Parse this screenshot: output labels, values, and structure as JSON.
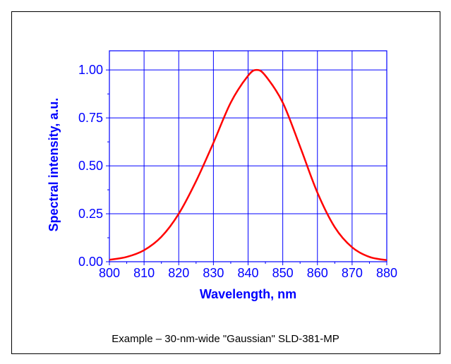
{
  "caption": "Example – 30-nm-wide \"Gaussian\" SLD-381-MP",
  "colors": {
    "axis": "#0000ff",
    "grid": "#0000ff",
    "curve": "#ff0000",
    "text": "#0000ff"
  },
  "chart_data": {
    "type": "line",
    "title": "",
    "xlabel": "Wavelength, nm",
    "ylabel": "Spectral intensity, a.u.",
    "xlim": [
      800,
      880
    ],
    "ylim": [
      0,
      1.1
    ],
    "xticks": [
      "800",
      "810",
      "820",
      "830",
      "840",
      "850",
      "860",
      "870",
      "880"
    ],
    "yticks": [
      "0.00",
      "0.25",
      "0.50",
      "0.75",
      "1.00"
    ],
    "grid": true,
    "series": [
      {
        "x": [
          800,
          805,
          810,
          815,
          820,
          825,
          830,
          835,
          840,
          842.5,
          845,
          850,
          855,
          860,
          865,
          870,
          875,
          880
        ],
        "y": [
          0.01,
          0.025,
          0.06,
          0.13,
          0.25,
          0.42,
          0.62,
          0.83,
          0.97,
          1.0,
          0.97,
          0.83,
          0.6,
          0.36,
          0.18,
          0.075,
          0.025,
          0.008
        ]
      }
    ]
  }
}
